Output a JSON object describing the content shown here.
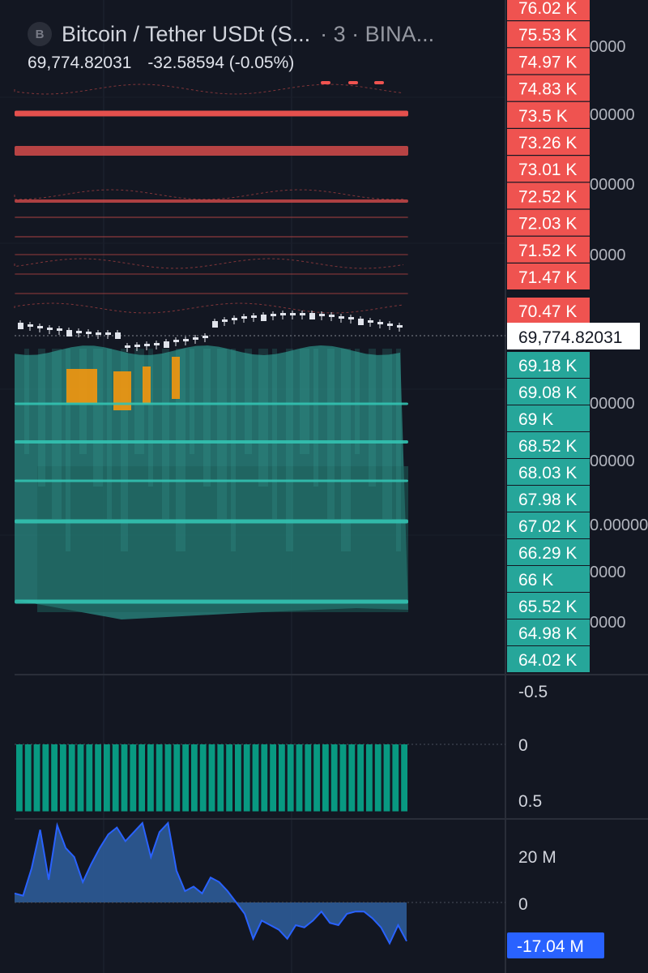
{
  "header": {
    "symbol_badge": "B",
    "title": "Bitcoin / Tether USDt (S...",
    "interval_exchange": "· 3 · BINA...",
    "price": "69,774.82031",
    "change": "-32.58594 (-0.05%)"
  },
  "colors": {
    "background": "#131722",
    "ask": "#ef5350",
    "bid": "#26a69a",
    "bid_fill": "#2b8f86",
    "highlight": "#f0960f",
    "volume_bar": "#089981",
    "flow_line": "#2962ff",
    "flow_fill": "#2f5f9e"
  },
  "chart_data": [
    {
      "type": "candlestick",
      "title": "Bitcoin / Tether USDt",
      "last_price": 69774.82031,
      "last_price_label": "69,774.82031",
      "ask_levels": [
        "76.02 K",
        "75.53 K",
        "74.97 K",
        "74.83 K",
        "73.5 K",
        "73.26 K",
        "73.01 K",
        "72.52 K",
        "72.03 K",
        "71.52 K",
        "71.47 K",
        "70.47 K"
      ],
      "bid_levels": [
        "69.18 K",
        "69.08 K",
        "69 K",
        "68.52 K",
        "68.03 K",
        "67.98 K",
        "67.02 K",
        "66.29 K",
        "66 K",
        "65.52 K",
        "64.98 K",
        "64.02 K"
      ],
      "hidden_axis_labels": [
        "0000",
        "00000",
        "00000",
        "0000",
        "00000",
        "00000",
        "00000",
        "0.00000",
        "0000",
        "0000"
      ]
    },
    {
      "type": "bar",
      "y_ticks": [
        "-0.5",
        "0",
        "0.5"
      ],
      "bar_count": 45,
      "values": [
        -1,
        -1,
        -1,
        -1,
        -1,
        -1,
        -1,
        -1,
        -1,
        -1,
        -1,
        -1,
        -1,
        -1,
        -1,
        -1,
        -1,
        -1,
        -1,
        -1,
        -1,
        -1,
        -1,
        -1,
        -1,
        -1,
        -1,
        -1,
        -1,
        -1,
        -1,
        -1,
        -1,
        -1,
        -1,
        -1,
        -1,
        -1,
        -1,
        -1,
        -1,
        -1,
        -1,
        -1,
        -1
      ]
    },
    {
      "type": "area",
      "y_ticks": [
        "20 M",
        "0"
      ],
      "values": [
        4,
        3,
        15,
        32,
        10,
        34,
        24,
        20,
        9,
        17,
        24,
        30,
        33,
        27,
        31,
        35,
        20,
        31,
        35,
        14,
        5,
        7,
        4,
        11,
        9,
        5,
        0,
        -5,
        -16,
        -8,
        -10,
        -12,
        -16,
        -10,
        -11,
        -8,
        -4,
        -9,
        -10,
        -5,
        -4,
        -4,
        -7,
        -11,
        -18,
        -10,
        -17.04
      ],
      "last_value_label": "-17.04 M"
    }
  ]
}
